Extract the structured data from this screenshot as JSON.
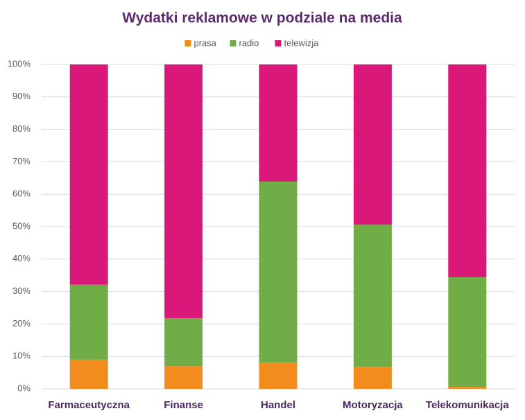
{
  "chart_data": {
    "type": "stacked_bar",
    "title": "Wydatki reklamowe w podziale na media",
    "categories": [
      "Farmaceutyczna",
      "Finanse",
      "Handel",
      "Motoryzacja",
      "Telekomunikacja"
    ],
    "series": [
      {
        "name": "prasa",
        "color": "#f28c1c",
        "values": [
          9.0,
          7.0,
          8.1,
          6.8,
          0.6
        ]
      },
      {
        "name": "radio",
        "color": "#70ad47",
        "values": [
          23.1,
          14.8,
          55.8,
          43.8,
          33.8
        ]
      },
      {
        "name": "telewizja",
        "color": "#d9187a",
        "values": [
          67.9,
          78.2,
          36.1,
          49.4,
          65.6
        ]
      }
    ],
    "ylim": [
      0,
      100
    ],
    "yticks": [
      {
        "value": 0,
        "label": "0%"
      },
      {
        "value": 10,
        "label": "10%"
      },
      {
        "value": 20,
        "label": "20%"
      },
      {
        "value": 30,
        "label": "30%"
      },
      {
        "value": 40,
        "label": "40%"
      },
      {
        "value": 50,
        "label": "50%"
      },
      {
        "value": 60,
        "label": "60%"
      },
      {
        "value": 70,
        "label": "70%"
      },
      {
        "value": 80,
        "label": "80%"
      },
      {
        "value": 90,
        "label": "90%"
      },
      {
        "value": 100,
        "label": "100%"
      }
    ],
    "grid": true,
    "legend": "top"
  }
}
